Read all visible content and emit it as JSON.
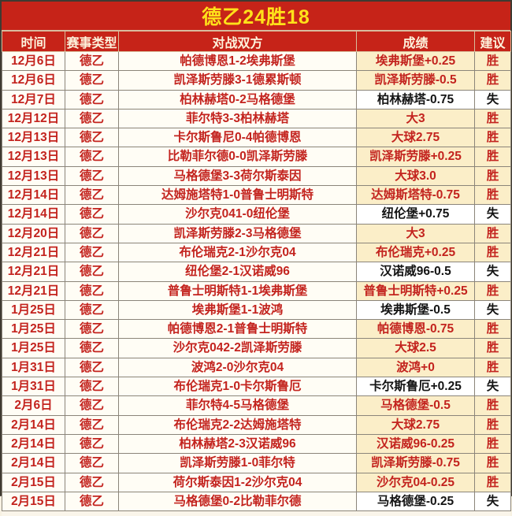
{
  "title": {
    "text": "德乙24胜18"
  },
  "colors": {
    "accent_red": "#c62318",
    "title_yellow": "#ffe11a",
    "header_text": "#fdf2dc",
    "body_red_text": "#c3231e",
    "win_highlight_bg": "#fbeec8",
    "loss_bg": "#ffffff",
    "loss_text": "#141414",
    "grid_line": "#8b857a"
  },
  "chart_data": {
    "type": "table",
    "title": "德乙24胜18",
    "columns": [
      "时间",
      "赛事类型",
      "对战双方",
      "成绩",
      "建议"
    ],
    "rows": [
      {
        "date": "12月6日",
        "league": "德乙",
        "match": "帕德博恩1-2埃弗斯堡",
        "result": "埃弗斯堡+0.25",
        "verdict": "胜"
      },
      {
        "date": "12月6日",
        "league": "德乙",
        "match": "凯泽斯劳滕3-1德累斯顿",
        "result": "凯泽斯劳滕-0.5",
        "verdict": "胜"
      },
      {
        "date": "12月7日",
        "league": "德乙",
        "match": "柏林赫塔0-2马格德堡",
        "result": "柏林赫塔-0.75",
        "verdict": "失"
      },
      {
        "date": "12月12日",
        "league": "德乙",
        "match": "菲尔特3-3柏林赫塔",
        "result": "大3",
        "verdict": "胜"
      },
      {
        "date": "12月13日",
        "league": "德乙",
        "match": "卡尔斯鲁尼0-4帕德博恩",
        "result": "大球2.75",
        "verdict": "胜"
      },
      {
        "date": "12月13日",
        "league": "德乙",
        "match": "比勒菲尔德0-0凯泽斯劳滕",
        "result": "凯泽斯劳滕+0.25",
        "verdict": "胜"
      },
      {
        "date": "12月13日",
        "league": "德乙",
        "match": "马格德堡3-3荷尔斯泰因",
        "result": "大球3.0",
        "verdict": "胜"
      },
      {
        "date": "12月14日",
        "league": "德乙",
        "match": "达姆施塔特1-0普鲁士明斯特",
        "result": "达姆斯塔特-0.75",
        "verdict": "胜"
      },
      {
        "date": "12月14日",
        "league": "德乙",
        "match": "沙尔克041-0纽伦堡",
        "result": "纽伦堡+0.75",
        "verdict": "失"
      },
      {
        "date": "12月20日",
        "league": "德乙",
        "match": "凯泽斯劳滕2-3马格德堡",
        "result": "大3",
        "verdict": "胜"
      },
      {
        "date": "12月21日",
        "league": "德乙",
        "match": "布伦瑞克2-1沙尔克04",
        "result": "布伦瑞克+0.25",
        "verdict": "胜"
      },
      {
        "date": "12月21日",
        "league": "德乙",
        "match": "纽伦堡2-1汉诺威96",
        "result": "汉诺威96-0.5",
        "verdict": "失"
      },
      {
        "date": "12月21日",
        "league": "德乙",
        "match": "普鲁士明斯特1-1埃弗斯堡",
        "result": "普鲁士明斯特+0.25",
        "verdict": "胜"
      },
      {
        "date": "1月25日",
        "league": "德乙",
        "match": "埃弗斯堡1-1波鸿",
        "result": "埃弗斯堡-0.5",
        "verdict": "失"
      },
      {
        "date": "1月25日",
        "league": "德乙",
        "match": "帕德博恩2-1普鲁士明斯特",
        "result": "帕德博恩-0.75",
        "verdict": "胜"
      },
      {
        "date": "1月25日",
        "league": "德乙",
        "match": "沙尔克042-2凯泽斯劳滕",
        "result": "大球2.5",
        "verdict": "胜"
      },
      {
        "date": "1月31日",
        "league": "德乙",
        "match": "波鸿2-0沙尔克04",
        "result": "波鸿+0",
        "verdict": "胜"
      },
      {
        "date": "1月31日",
        "league": "德乙",
        "match": "布伦瑞克1-0卡尔斯鲁厄",
        "result": "卡尔斯鲁厄+0.25",
        "verdict": "失"
      },
      {
        "date": "2月6日",
        "league": "德乙",
        "match": "菲尔特4-5马格德堡",
        "result": "马格德堡-0.5",
        "verdict": "胜"
      },
      {
        "date": "2月14日",
        "league": "德乙",
        "match": "布伦瑞克2-2达姆施塔特",
        "result": "大球2.75",
        "verdict": "胜"
      },
      {
        "date": "2月14日",
        "league": "德乙",
        "match": "柏林赫塔2-3汉诺威96",
        "result": "汉诺威96-0.25",
        "verdict": "胜"
      },
      {
        "date": "2月14日",
        "league": "德乙",
        "match": "凯泽斯劳滕1-0菲尔特",
        "result": "凯泽斯劳滕-0.75",
        "verdict": "胜"
      },
      {
        "date": "2月15日",
        "league": "德乙",
        "match": "荷尔斯泰因1-2沙尔克04",
        "result": "沙尔克04-0.25",
        "verdict": "胜"
      },
      {
        "date": "2月15日",
        "league": "德乙",
        "match": "马格德堡0-2比勒菲尔德",
        "result": "马格德堡-0.25",
        "verdict": "失"
      }
    ]
  }
}
